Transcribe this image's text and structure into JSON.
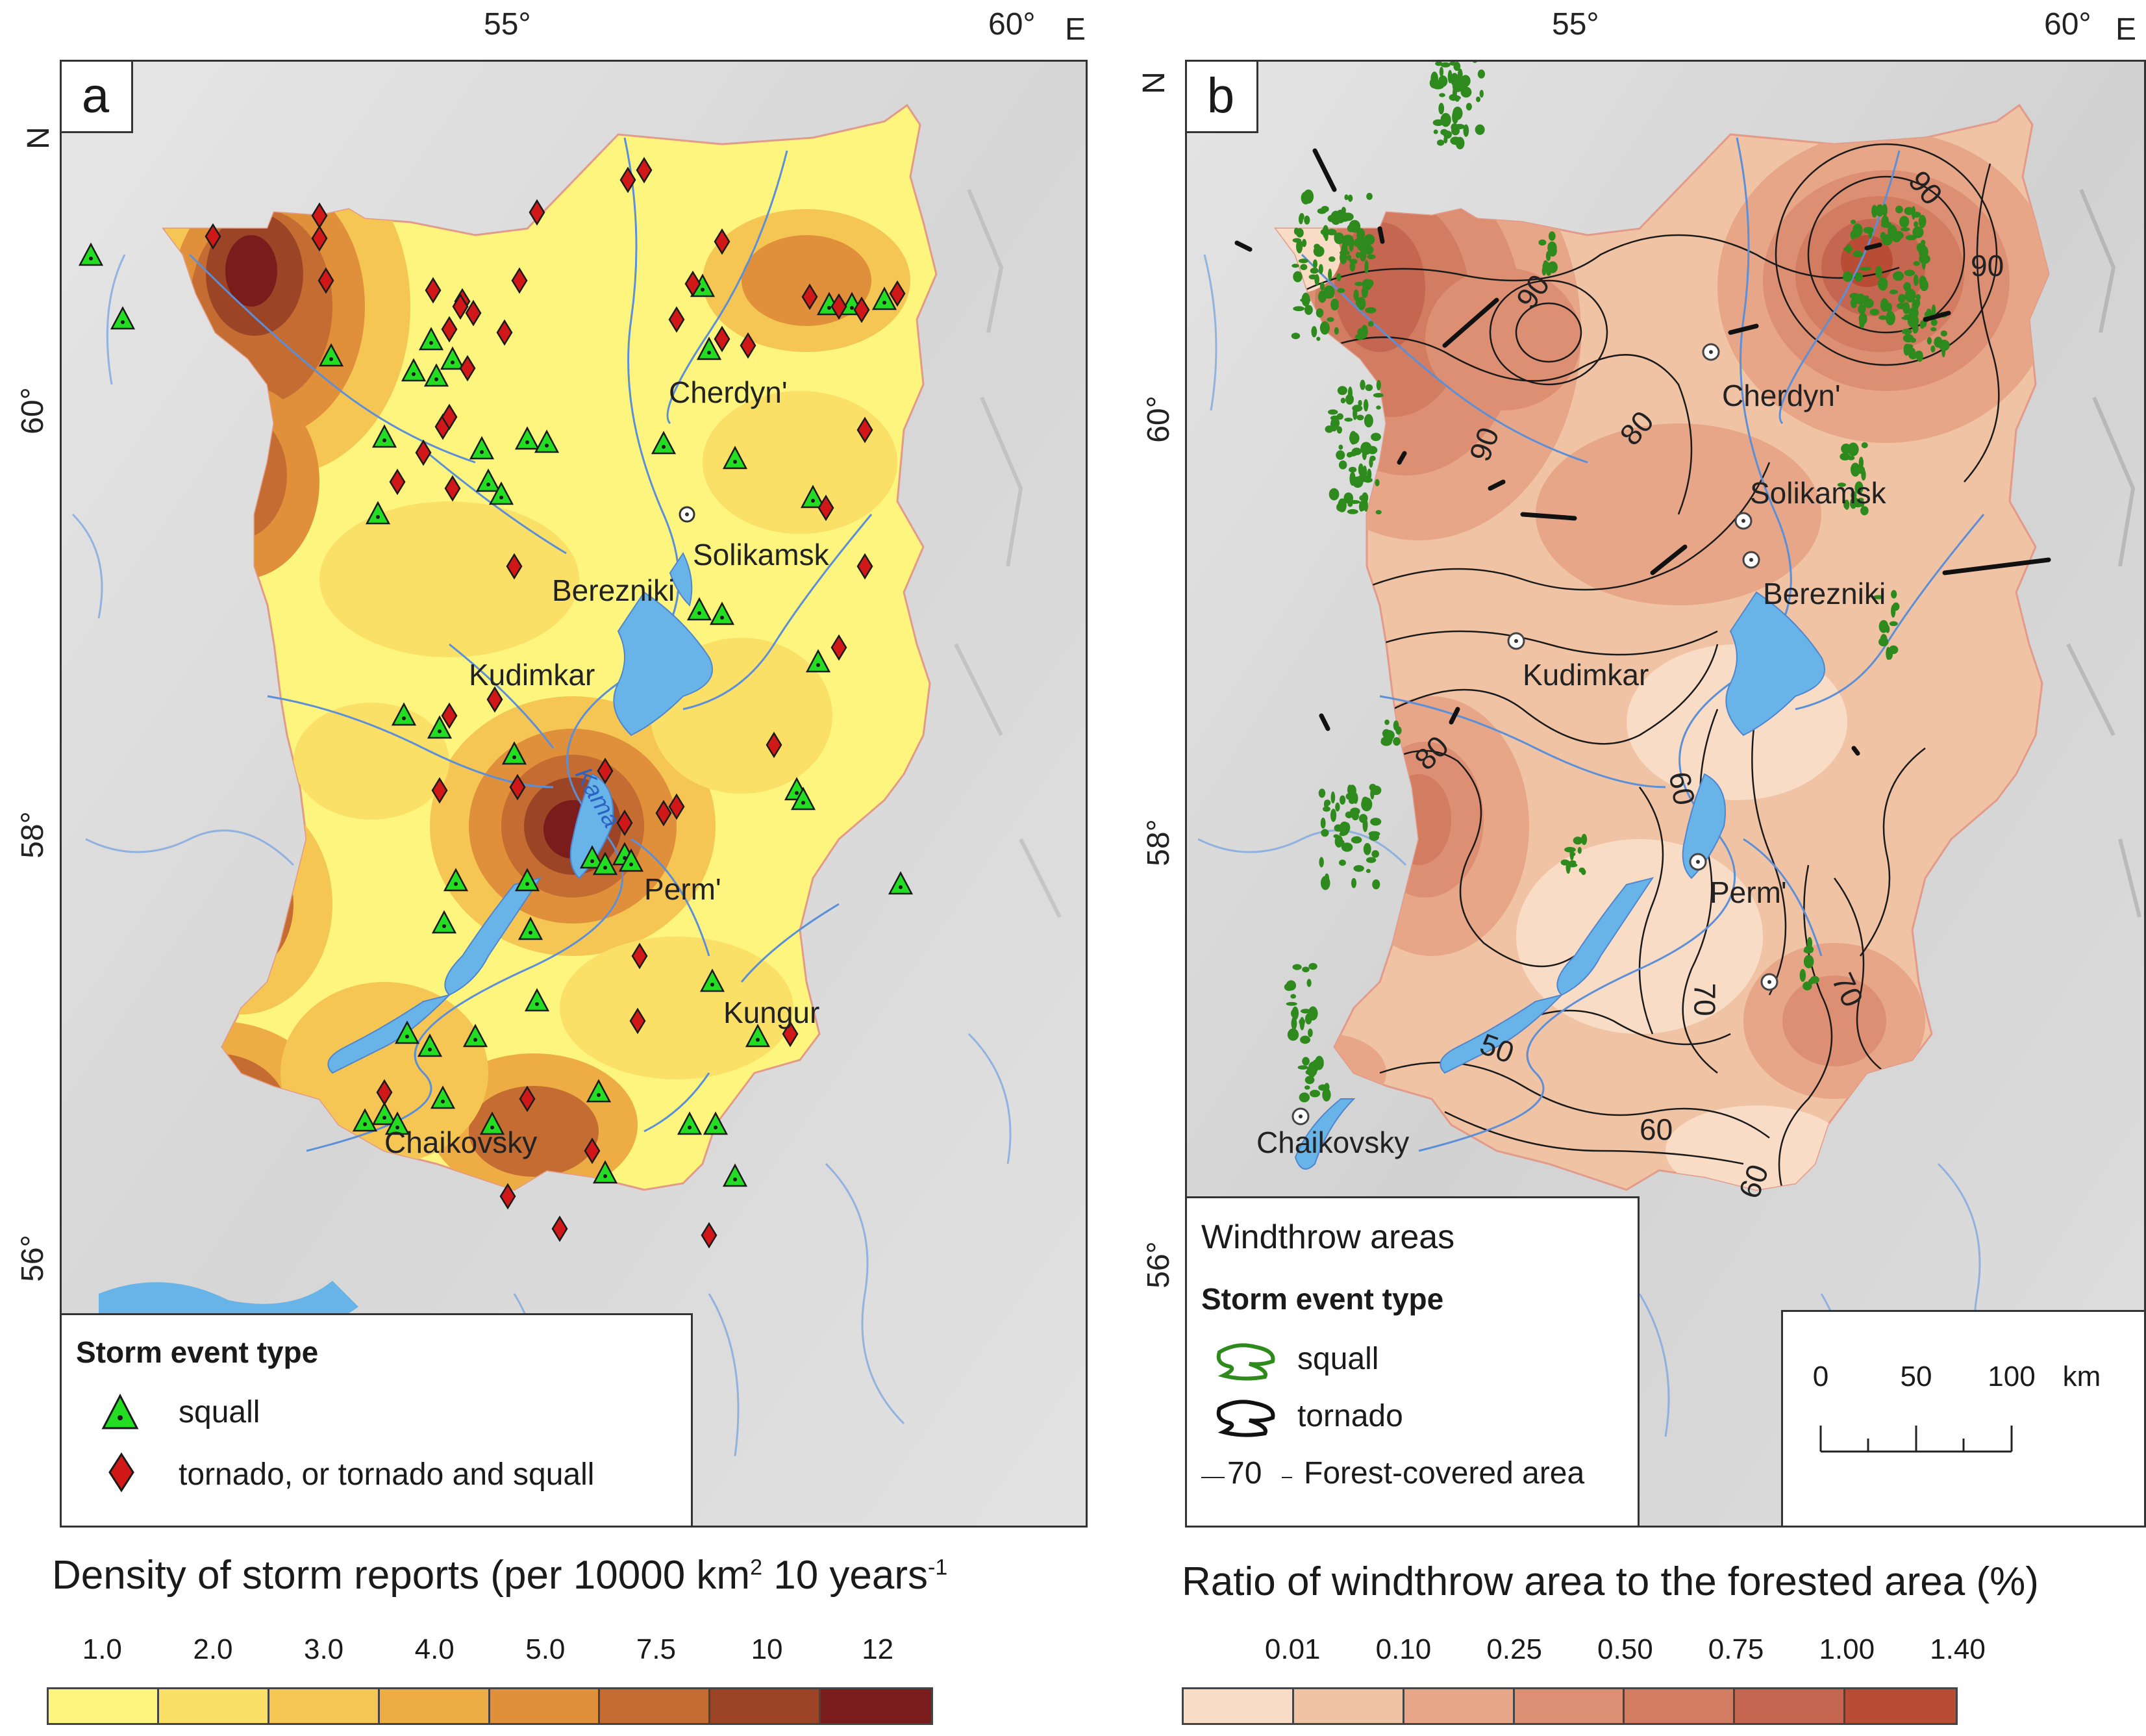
{
  "panel_a": {
    "letter": "a",
    "lat_labels": [
      "60°",
      "58°",
      "56°"
    ],
    "lon_labels": [
      "55°",
      "60°"
    ],
    "lon_suffix": "E",
    "lat_suffix": "N",
    "cities": {
      "cherdyn": "Cherdyn'",
      "solikamsk": "Solikamsk",
      "berezniki": "Berezniki",
      "kudimkar": "Kudimkar",
      "perm": "Perm'",
      "kungur": "Kungur",
      "chaikovsky": "Chaikovsky",
      "kama": "Kama"
    },
    "legend": {
      "title": "Storm event type",
      "squall": "squall",
      "tornado": "tornado, or tornado and squall"
    },
    "colorbar": {
      "title": "Density of storm reports (per 10000 km",
      "sup1": "2",
      "mid": " 10 years",
      "sup2": "-1",
      "ticks": [
        "1.0",
        "2.0",
        "3.0",
        "4.0",
        "5.0",
        "7.5",
        "10",
        "12"
      ],
      "colors": [
        "#fdf57e",
        "#fbe068",
        "#f6c654",
        "#eeac45",
        "#e0903a",
        "#c46c31",
        "#9c4526",
        "#7a1c1c"
      ]
    }
  },
  "panel_b": {
    "letter": "b",
    "lat_labels": [
      "60°",
      "58°",
      "56°"
    ],
    "lon_labels": [
      "55°",
      "60°"
    ],
    "lon_suffix": "E",
    "lat_suffix": "N",
    "cities": {
      "cherdyn": "Cherdyn'",
      "solikamsk": "Solikamsk",
      "berezniki": "Berezniki",
      "kudimkar": "Kudimkar",
      "perm": "Perm'",
      "chaikovsky": "Chaikovsky"
    },
    "contour_labels": [
      "90",
      "90",
      "90",
      "90",
      "80",
      "80",
      "60",
      "70",
      "70",
      "50",
      "60",
      "60"
    ],
    "legend": {
      "title": "Windthrow areas",
      "subtitle": "Storm event type",
      "squall": "squall",
      "tornado": "tornado",
      "forest_sample": "70",
      "forest": "Forest-covered area"
    },
    "scale": {
      "labels": [
        "0",
        "50",
        "100"
      ],
      "unit": "km"
    },
    "colorbar": {
      "title": "Ratio of windthrow area to the forested area (%)",
      "ticks": [
        "0.01",
        "0.10",
        "0.25",
        "0.50",
        "0.75",
        "1.00",
        "1.40"
      ],
      "colors": [
        "#f8dcc6",
        "#f1c3a5",
        "#e6a687",
        "#dc8f73",
        "#d27c61",
        "#c46650",
        "#b84c35"
      ]
    }
  },
  "colors": {
    "squall_marker": "#22dd22",
    "tornado_marker": "#d01818",
    "river": "#5b8fd8",
    "lake": "#68b4e8",
    "forest_patch": "#2f8a1e",
    "background_relief": "#dcdcdc"
  }
}
